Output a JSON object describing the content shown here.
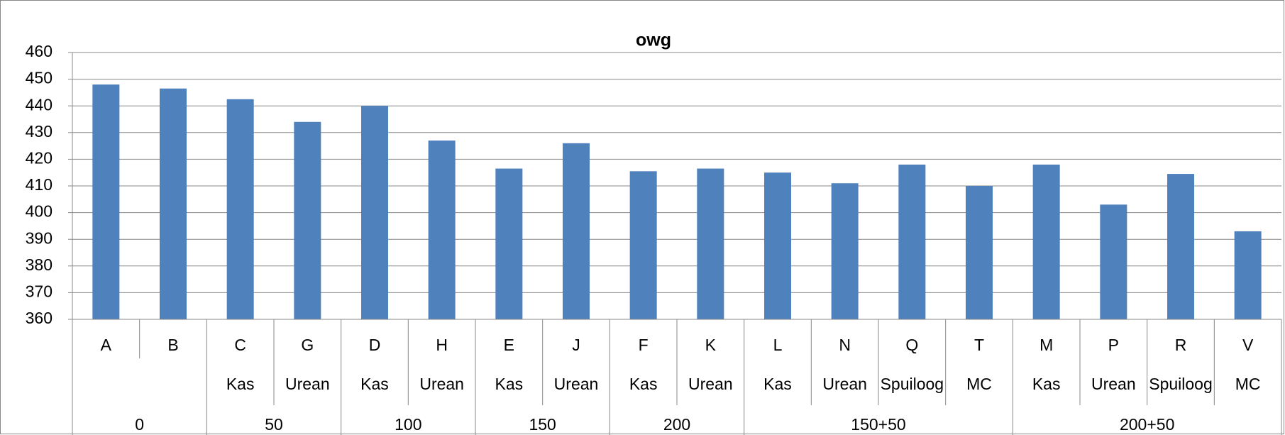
{
  "chart_data": {
    "type": "bar",
    "title": "owg",
    "categories": [
      "A",
      "B",
      "C",
      "G",
      "D",
      "H",
      "E",
      "J",
      "F",
      "K",
      "L",
      "N",
      "Q",
      "T",
      "M",
      "P",
      "R",
      "V"
    ],
    "subcategories": [
      null,
      null,
      "Kas",
      "Urean",
      "Kas",
      "Urean",
      "Kas",
      "Urean",
      "Kas",
      "Urean",
      "Kas",
      "Urean",
      "Spuiloog",
      "MC",
      "Kas",
      "Urean",
      "Spuiloog",
      "MC"
    ],
    "groups": [
      "0",
      null,
      "50",
      null,
      "100",
      null,
      "150",
      null,
      "200",
      null,
      "150+50",
      null,
      null,
      null,
      "200+50",
      null,
      null,
      null
    ],
    "values": [
      448,
      446.5,
      442.5,
      434,
      440,
      427,
      416.5,
      426,
      415.5,
      416.5,
      415,
      411,
      418,
      410,
      418,
      403,
      414.5,
      393
    ],
    "color": "#4f81bd",
    "ylim": [
      360,
      460
    ],
    "yticks": [
      360,
      370,
      380,
      390,
      400,
      410,
      420,
      430,
      440,
      450,
      460
    ],
    "grid": true
  }
}
